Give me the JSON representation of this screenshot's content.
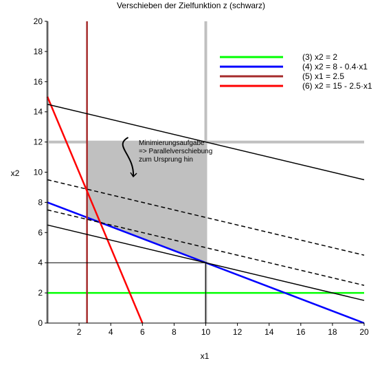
{
  "chart_data": {
    "type": "line",
    "title": "Verschieben der Zielfunktion z (schwarz)",
    "xlabel": "x1",
    "ylabel": "x2",
    "xlim": [
      0,
      20
    ],
    "ylim": [
      0,
      20
    ],
    "xticks": [
      2,
      4,
      6,
      8,
      10,
      12,
      14,
      16,
      18,
      20
    ],
    "yticks": [
      0,
      2,
      4,
      6,
      8,
      10,
      12,
      14,
      16,
      18,
      20
    ],
    "grid": false,
    "legend_position": "top-right",
    "boundary_lines": [
      {
        "name": "x1 = 0",
        "color": "#c0c0c0",
        "x": [
          0,
          0
        ],
        "y": [
          0,
          20
        ]
      },
      {
        "name": "x1 = 10",
        "color": "#c0c0c0",
        "x": [
          10,
          10
        ],
        "y": [
          0,
          20
        ]
      },
      {
        "name": "x2 = 12",
        "color": "#c0c0c0",
        "x": [
          0,
          20
        ],
        "y": [
          12,
          12
        ]
      }
    ],
    "feasible_region": {
      "color": "#c0c0c0",
      "x": [
        2.5,
        10,
        10,
        2.5
      ],
      "y": [
        7,
        4,
        12,
        12
      ]
    },
    "series": [
      {
        "name": "(3) x2 = 2",
        "color": "#00ff00",
        "x": [
          0,
          20
        ],
        "y": [
          2,
          2
        ]
      },
      {
        "name": "(4) x2 = 8 - 0.4·x1",
        "color": "#0000ff",
        "x": [
          0,
          20
        ],
        "y": [
          8,
          0
        ]
      },
      {
        "name": "(5) x1 = 2.5",
        "color": "#a52a2a",
        "x": [
          2.5,
          2.5
        ],
        "y": [
          0,
          20
        ]
      },
      {
        "name": "(6) x2 = 15 - 2.5·x1",
        "color": "#ff0000",
        "x": [
          0,
          6
        ],
        "y": [
          15,
          0
        ]
      }
    ],
    "objective_lines": [
      {
        "style": "solid",
        "color": "#000000",
        "x": [
          0,
          20
        ],
        "y": [
          14.5,
          9.5
        ]
      },
      {
        "style": "dashed",
        "color": "#000000",
        "x": [
          0,
          20
        ],
        "y": [
          9.5,
          4.5
        ]
      },
      {
        "style": "dashed",
        "color": "#000000",
        "x": [
          0,
          20
        ],
        "y": [
          7.5,
          2.5
        ]
      },
      {
        "style": "solid",
        "color": "#000000",
        "x": [
          0,
          20
        ],
        "y": [
          6.5,
          1.5
        ]
      }
    ],
    "optimum_marker": {
      "x": 10,
      "y": 4,
      "color": "#000000"
    },
    "annotation": {
      "lines": [
        "Minimierungsaufgabe",
        "=> Parallelverschiebung",
        "zum Ursprung hin"
      ],
      "anchor": {
        "x": 5.1,
        "y": 12.3
      }
    }
  }
}
